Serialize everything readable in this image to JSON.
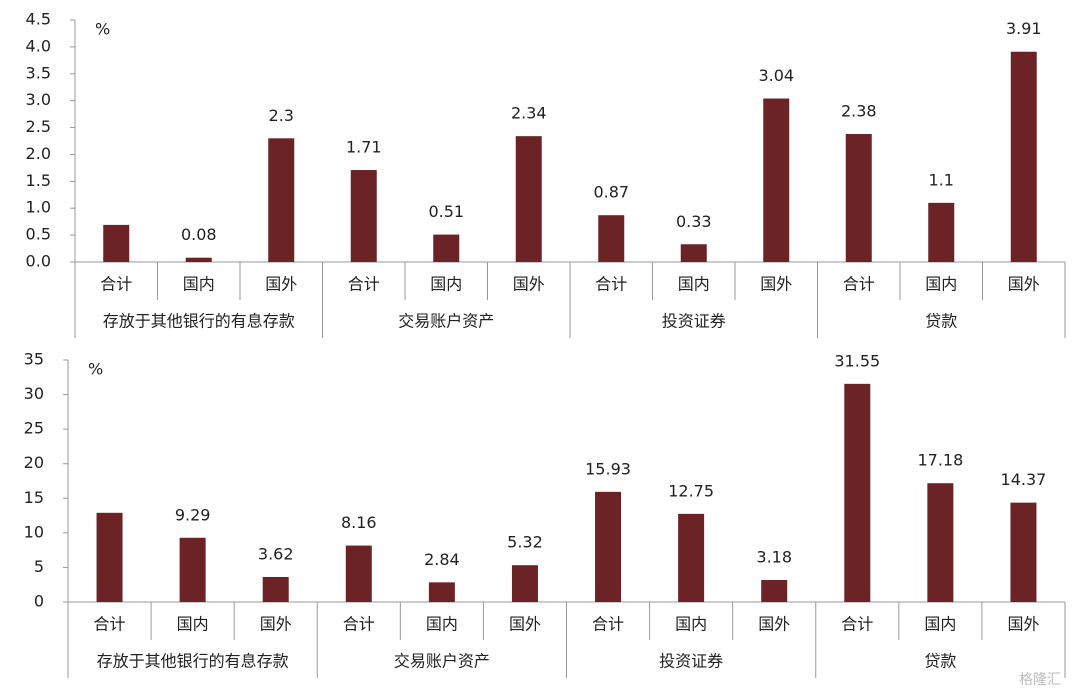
{
  "chart_data": [
    {
      "type": "bar",
      "unit": "%",
      "categories": [
        "合计",
        "国内",
        "国外",
        "合计",
        "国内",
        "国外",
        "合计",
        "国内",
        "国外",
        "合计",
        "国内",
        "国外"
      ],
      "groups": [
        "存放于其他银行的有息存款",
        "交易账户资产",
        "投资证券",
        "贷款"
      ],
      "values": [
        0.69,
        0.08,
        2.3,
        1.71,
        0.51,
        2.34,
        0.87,
        0.33,
        3.04,
        2.38,
        1.1,
        3.91
      ],
      "value_labels": [
        null,
        "0.08",
        "2.3",
        "1.71",
        "0.51",
        "2.34",
        "0.87",
        "0.33",
        "3.04",
        "2.38",
        "1.1",
        "3.91"
      ],
      "color": "#6b2326",
      "ylim": [
        0,
        4.5
      ],
      "yticks": [
        {
          "value": 0,
          "label": "0.0"
        },
        0.5,
        {
          "value": 1,
          "label": "1.0"
        },
        1.5,
        {
          "value": 2,
          "label": "2.0"
        },
        2.5,
        {
          "value": 3,
          "label": "3.0"
        },
        3.5,
        {
          "value": 4,
          "label": "4.0"
        },
        4.5
      ]
    },
    {
      "type": "bar",
      "unit": "%",
      "categories": [
        "合计",
        "国内",
        "国外",
        "合计",
        "国内",
        "国外",
        "合计",
        "国内",
        "国外",
        "合计",
        "国内",
        "国外"
      ],
      "groups": [
        "存放于其他银行的有息存款",
        "交易账户资产",
        "投资证券",
        "贷款"
      ],
      "values": [
        12.9,
        9.29,
        3.62,
        8.16,
        2.84,
        5.32,
        15.93,
        12.75,
        3.18,
        31.55,
        17.18,
        14.37
      ],
      "value_labels": [
        null,
        "9.29",
        "3.62",
        "8.16",
        "2.84",
        "5.32",
        "15.93",
        "12.75",
        "3.18",
        "31.55",
        "17.18",
        "14.37"
      ],
      "color": "#6b2326",
      "ylim": [
        0,
        35
      ],
      "yticks": [
        0,
        5,
        10,
        15,
        20,
        25,
        30,
        35
      ]
    }
  ],
  "watermark": "格隆汇"
}
